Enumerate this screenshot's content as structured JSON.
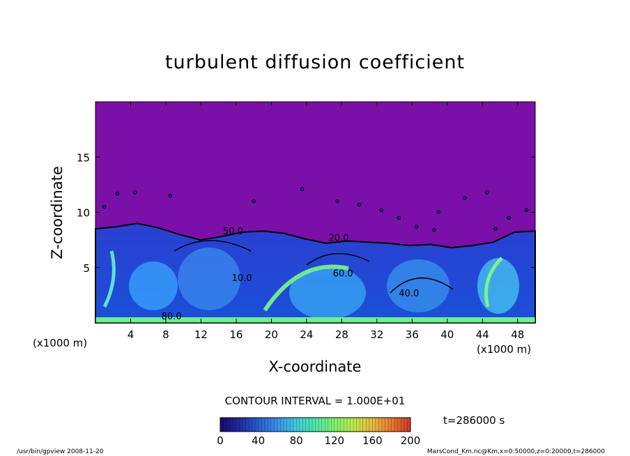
{
  "chart_data": {
    "type": "heatmap",
    "title": "turbulent diffusion coefficient",
    "xlabel": "X-coordinate",
    "ylabel": "Z-coordinate",
    "x_unit": "(x1000 m)",
    "z_unit": "(x1000 m)",
    "xlim": [
      0,
      50
    ],
    "ylim": [
      0,
      20
    ],
    "x_ticks": [
      4,
      8,
      12,
      16,
      20,
      24,
      28,
      32,
      36,
      40,
      44,
      48
    ],
    "y_ticks": [
      5,
      10,
      15
    ],
    "background_value": 0,
    "mixed_layer_top_km": [
      8.5,
      8.7,
      9.0,
      8.6,
      8.0,
      7.5,
      7.8,
      8.2,
      8.3,
      8.1,
      7.6,
      7.2,
      7.4,
      7.3,
      7.2,
      7.0,
      7.1,
      6.8,
      7.0,
      7.3,
      8.2,
      8.3
    ],
    "contour_labels": [
      {
        "x": 14.5,
        "z": 8.0,
        "text": "50.0"
      },
      {
        "x": 26.5,
        "z": 7.4,
        "text": "20.0"
      },
      {
        "x": 27.0,
        "z": 4.2,
        "text": "60.0"
      },
      {
        "x": 15.5,
        "z": 3.8,
        "text": "10.0"
      },
      {
        "x": 34.5,
        "z": 2.4,
        "text": "40.0"
      },
      {
        "x": 7.5,
        "z": 0.3,
        "text": "80.0"
      }
    ],
    "colorbar": {
      "min": 0,
      "max": 200,
      "ticks": [
        0,
        40,
        80,
        120,
        160,
        200
      ],
      "colors": [
        "#1a0870",
        "#1e2a9e",
        "#2a5cd0",
        "#3a90e8",
        "#40c8e0",
        "#4ce8a8",
        "#7ef070",
        "#c0e850",
        "#e8b840",
        "#e87830",
        "#c83a28"
      ]
    },
    "contour_interval": "CONTOUR INTERVAL = 1.000E+01",
    "time": "t=286000 s"
  },
  "footer": {
    "left": "/usr/bin/gpview  2008-11-20",
    "right": "MarsCond_Km.nc@Km,x=0:50000,z=0:20000,t=286000"
  }
}
